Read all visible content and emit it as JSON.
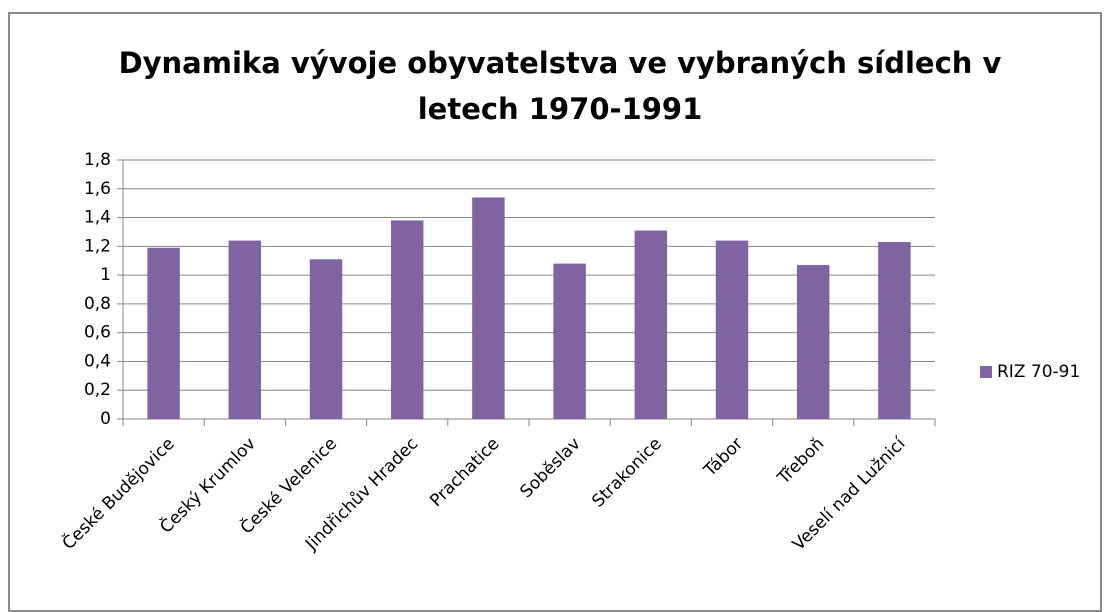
{
  "chart_data": {
    "type": "bar",
    "title": "Dynamika vývoje obyvatelstva ve vybraných sídlech v letech 1970-1991",
    "categories": [
      "České Budějovice",
      "Český Krumlov",
      "České Velenice",
      "Jindřichův Hradec",
      "Prachatice",
      "Soběslav",
      "Strakonice",
      "Tábor",
      "Třeboň",
      "Veselí nad Lužnicí"
    ],
    "series": [
      {
        "name": "RIZ 70-91",
        "color": "#8064a2",
        "values": [
          1.19,
          1.24,
          1.11,
          1.38,
          1.54,
          1.08,
          1.31,
          1.24,
          1.07,
          1.23
        ]
      }
    ],
    "ylim": [
      0,
      1.8
    ],
    "yticks": [
      0,
      {
        "value": 0.2,
        "label": "0,2"
      },
      {
        "value": 0.4,
        "label": "0,4"
      },
      {
        "value": 0.6,
        "label": "0,6"
      },
      {
        "value": 0.8,
        "label": "0,8"
      },
      1,
      {
        "value": 1.2,
        "label": "1,2"
      },
      {
        "value": 1.4,
        "label": "1,4"
      },
      {
        "value": 1.6,
        "label": "1,6"
      },
      {
        "value": 1.8,
        "label": "1,8"
      }
    ],
    "grid": true,
    "legend": "right"
  }
}
